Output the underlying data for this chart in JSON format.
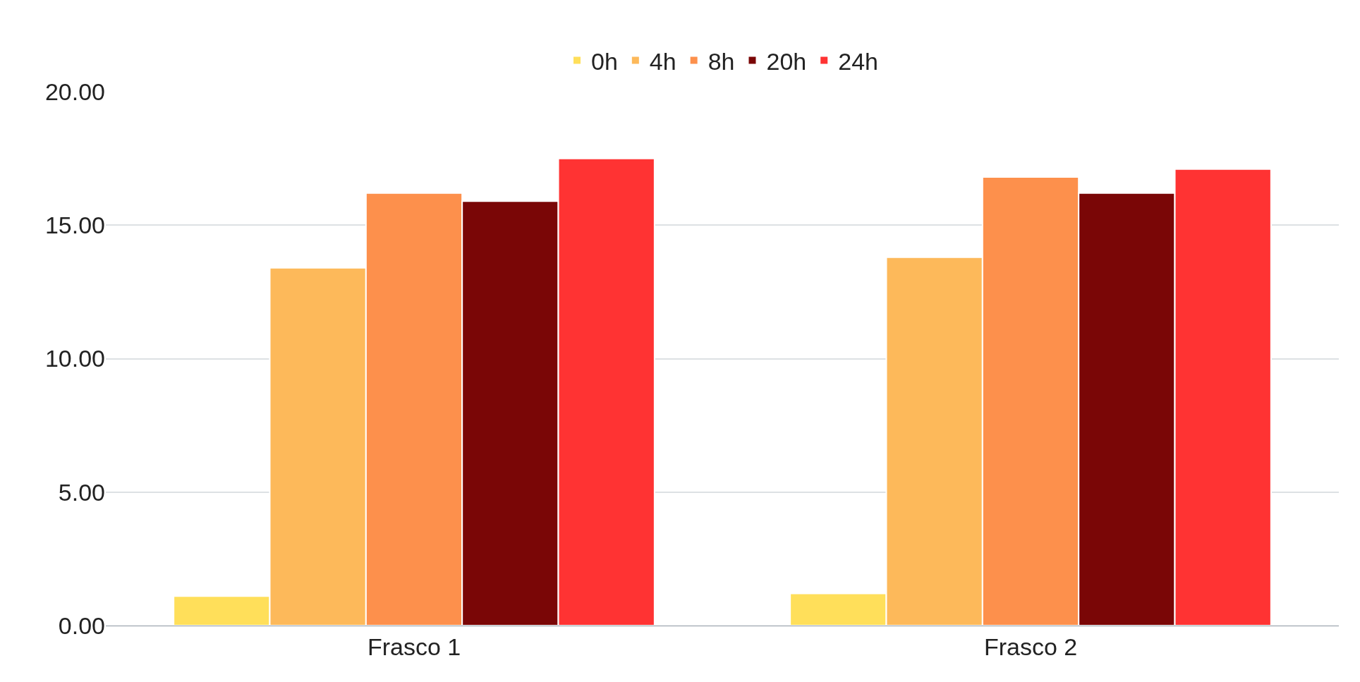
{
  "chart_data": {
    "type": "bar",
    "categories": [
      "Frasco 1",
      "Frasco 2"
    ],
    "series": [
      {
        "name": "0h",
        "color": "#ffdf5a",
        "values": [
          1.1,
          1.2
        ]
      },
      {
        "name": "4h",
        "color": "#fdb95a",
        "values": [
          13.4,
          13.8
        ]
      },
      {
        "name": "8h",
        "color": "#fd904c",
        "values": [
          16.2,
          16.8
        ]
      },
      {
        "name": "20h",
        "color": "#7a0606",
        "values": [
          15.9,
          16.2
        ]
      },
      {
        "name": "24h",
        "color": "#ff3333",
        "values": [
          17.5,
          17.1
        ]
      }
    ],
    "ylim": [
      0,
      20
    ],
    "yticks": [
      {
        "value": 0,
        "label": "0.00"
      },
      {
        "value": 5,
        "label": "5.00"
      },
      {
        "value": 10,
        "label": "10.00"
      },
      {
        "value": 15,
        "label": "15.00"
      },
      {
        "value": 20,
        "label": "20.00"
      }
    ],
    "grid": "y",
    "legend": "top"
  }
}
